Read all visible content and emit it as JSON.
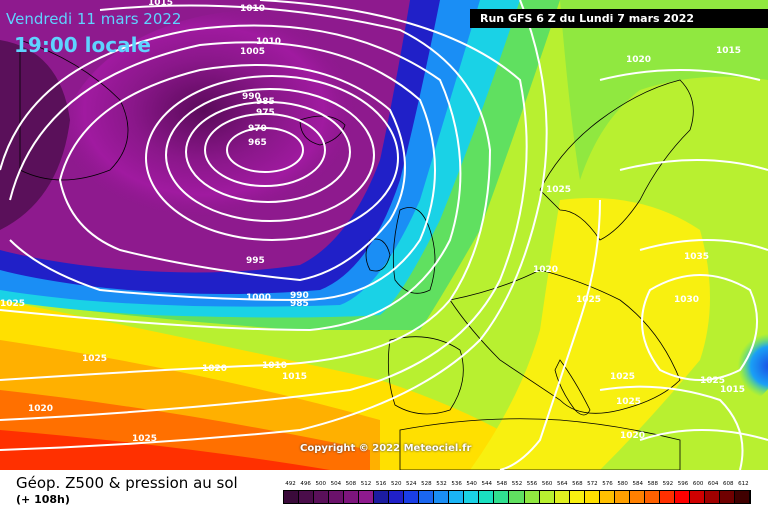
{
  "header": {
    "date": "Vendredi 11 mars 2022",
    "local_time": "19:00 locale",
    "run_info": "Run GFS 6 Z du Lundi 7 mars 2022"
  },
  "copyright": "Copyright © 2022 Meteociel.fr",
  "legend": {
    "title": "Géop. Z500 & pression au sol",
    "subtitle": "(+ 108h)",
    "scale_values": [
      "492",
      "496",
      "500",
      "504",
      "508",
      "512",
      "516",
      "520",
      "524",
      "528",
      "532",
      "536",
      "540",
      "544",
      "548",
      "552",
      "556",
      "560",
      "564",
      "568",
      "572",
      "576",
      "580",
      "584",
      "588",
      "592",
      "596",
      "600",
      "604",
      "608",
      "612"
    ],
    "scale_colors": [
      "#3a0a3a",
      "#4a0d4a",
      "#5a105a",
      "#6b126b",
      "#7d157d",
      "#8e1a8e",
      "#1c1ca0",
      "#2020c8",
      "#1a3ee6",
      "#1a66f0",
      "#1a8ef5",
      "#1ab4f5",
      "#1ad2e6",
      "#1ae0c0",
      "#30e090",
      "#60e060",
      "#90e840",
      "#b8f030",
      "#e0f020",
      "#f8f010",
      "#ffe000",
      "#ffc000",
      "#ffa000",
      "#ff8000",
      "#ff6000",
      "#ff3000",
      "#ff0000",
      "#d00000",
      "#a00000",
      "#700000",
      "#400000"
    ]
  },
  "isobars": {
    "labels": [
      "1010",
      "1015",
      "1010",
      "1005",
      "990",
      "985",
      "975",
      "970",
      "965",
      "995",
      "1000",
      "990",
      "985",
      "1025",
      "1020",
      "1025",
      "1010",
      "1015",
      "1020",
      "1025",
      "1015",
      "1020",
      "1025",
      "1035",
      "1030",
      "1025",
      "1025",
      "1025",
      "1020",
      "1015",
      "1020",
      "1025"
    ]
  }
}
